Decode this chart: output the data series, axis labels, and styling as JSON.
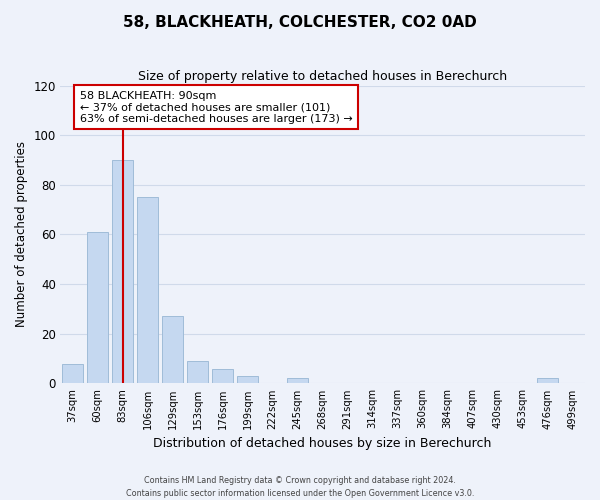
{
  "title": "58, BLACKHEATH, COLCHESTER, CO2 0AD",
  "subtitle": "Size of property relative to detached houses in Berechurch",
  "xlabel": "Distribution of detached houses by size in Berechurch",
  "ylabel": "Number of detached properties",
  "bar_labels": [
    "37sqm",
    "60sqm",
    "83sqm",
    "106sqm",
    "129sqm",
    "153sqm",
    "176sqm",
    "199sqm",
    "222sqm",
    "245sqm",
    "268sqm",
    "291sqm",
    "314sqm",
    "337sqm",
    "360sqm",
    "384sqm",
    "407sqm",
    "430sqm",
    "453sqm",
    "476sqm",
    "499sqm"
  ],
  "bar_values": [
    8,
    61,
    90,
    75,
    27,
    9,
    6,
    3,
    0,
    2,
    0,
    0,
    0,
    0,
    0,
    0,
    0,
    0,
    0,
    2,
    0
  ],
  "bar_color": "#c5d8f0",
  "bar_edge_color": "#a0bcd8",
  "vline_x_index": 2,
  "vline_color": "#cc0000",
  "ylim": [
    0,
    120
  ],
  "yticks": [
    0,
    20,
    40,
    60,
    80,
    100,
    120
  ],
  "annotation_title": "58 BLACKHEATH: 90sqm",
  "annotation_line1": "← 37% of detached houses are smaller (101)",
  "annotation_line2": "63% of semi-detached houses are larger (173) →",
  "annotation_box_color": "#ffffff",
  "annotation_box_edge": "#cc0000",
  "grid_color": "#d0daea",
  "background_color": "#eef2fa",
  "footer1": "Contains HM Land Registry data © Crown copyright and database right 2024.",
  "footer2": "Contains public sector information licensed under the Open Government Licence v3.0."
}
